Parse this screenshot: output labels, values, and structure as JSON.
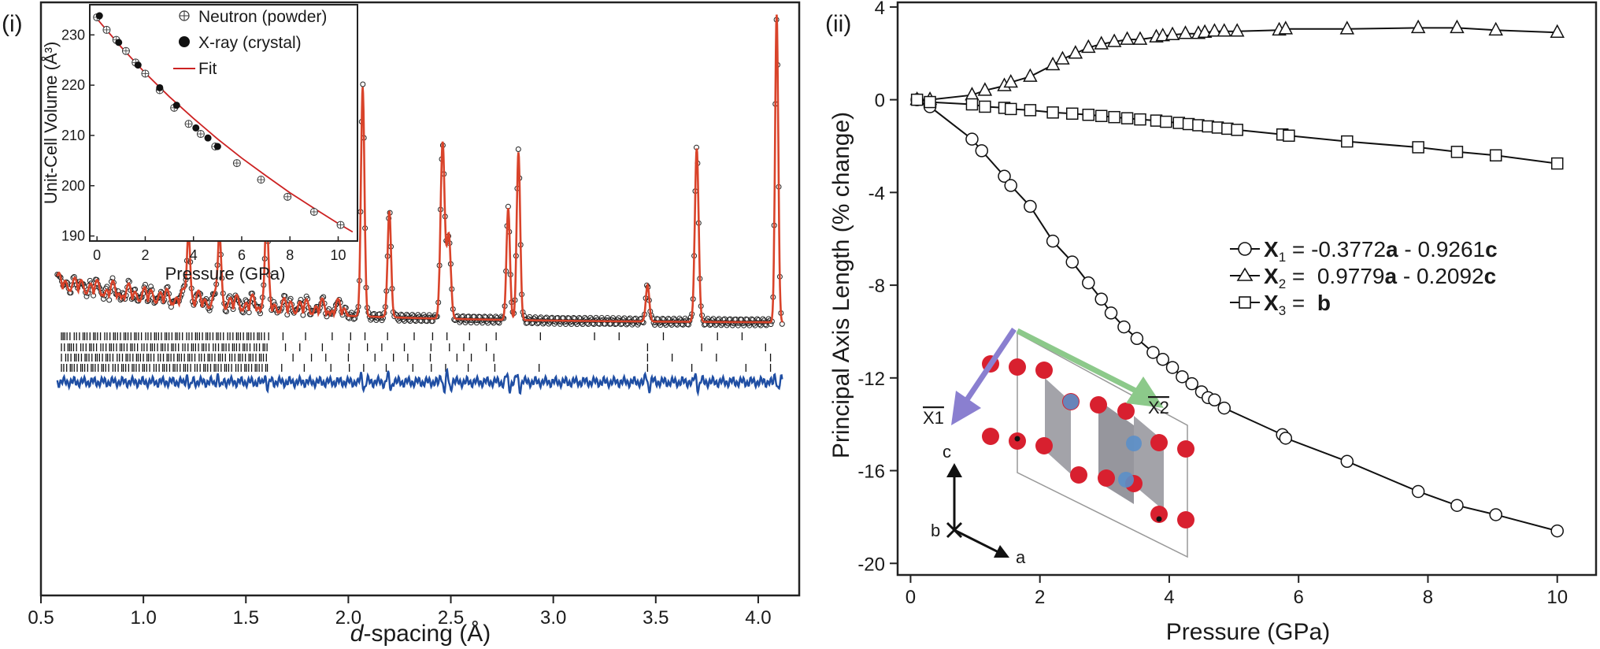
{
  "panel_i": {
    "panel_label": "(i)",
    "xlabel_italic": "d",
    "xlabel_rest": "-spacing (Å)",
    "x_ticks": [
      "0.5",
      "1.0",
      "1.5",
      "2.0",
      "2.5",
      "3.0",
      "3.5",
      "4.0"
    ],
    "inset": {
      "ylabel": "Unit-Cell Volume (Å³)",
      "xlabel": "Pressure (GPa)",
      "x_ticks": [
        "0",
        "2",
        "4",
        "6",
        "8",
        "10"
      ],
      "y_ticks": [
        "190",
        "200",
        "210",
        "220",
        "230"
      ],
      "legend": [
        "Neutron (powder)",
        "X-ray (crystal)",
        "Fit"
      ]
    }
  },
  "panel_ii": {
    "panel_label": "(ii)",
    "xlabel": "Pressure (GPa)",
    "ylabel": "Principal Axis Length (% change)",
    "x_ticks": [
      "0",
      "2",
      "4",
      "6",
      "8",
      "10"
    ],
    "y_ticks": [
      "4",
      "0",
      "-4",
      "-8",
      "-12",
      "-16",
      "-20"
    ],
    "legend": {
      "x1": {
        "sym": "X",
        "sub": "1",
        "eq": " = -0.3772",
        "v1": "a",
        "mid": " - 0.9261",
        "v2": "c"
      },
      "x2": {
        "sym": "X",
        "sub": "2",
        "eq": " =  0.9779",
        "v1": "a",
        "mid": " - 0.2092",
        "v2": "c"
      },
      "x3": {
        "sym": "X",
        "sub": "3",
        "eq": " =  ",
        "v1": "b"
      }
    },
    "structure_labels": {
      "x1": "X1",
      "x2": "X2",
      "c": "c",
      "b": "b",
      "a": "a"
    }
  },
  "colors": {
    "observed": "#222222",
    "fit": "#d9432a",
    "difference": "#1f4ea3",
    "inset_fit": "#cc2222",
    "arrow_x1": "#8a7fd0",
    "arrow_x2": "#8cc98a",
    "atom": "#d8202f",
    "atom_blue": "#5b8fc9",
    "poly": "#7c7c84"
  },
  "chart_data": [
    {
      "type": "line",
      "title": "",
      "xlabel": "d-spacing (Å)",
      "ylabel": "",
      "xlim": [
        0.5,
        4.2
      ],
      "peaks_d": [
        1.22,
        1.37,
        1.6,
        2.07,
        2.2,
        2.46,
        2.49,
        2.78,
        2.83,
        3.46,
        3.7,
        4.09
      ],
      "reflection_rows": 4,
      "series": [
        {
          "name": "",
          "style": "observed (open circles)"
        },
        {
          "name": "",
          "style": "calculated (red line)"
        },
        {
          "name": "",
          "style": "difference (blue line)"
        }
      ]
    },
    {
      "type": "scatter",
      "title": "",
      "xlabel": "Pressure (GPa)",
      "ylabel": "Unit-Cell Volume (Å³)",
      "xlim": [
        -0.3,
        10.8
      ],
      "ylim": [
        189,
        236
      ],
      "series": [
        {
          "name": "Neutron (powder)",
          "x": [
            0.0,
            0.4,
            0.8,
            1.2,
            1.6,
            2.0,
            2.6,
            3.2,
            3.8,
            4.3,
            4.9,
            5.8,
            6.8,
            7.9,
            9.0,
            10.1
          ],
          "y": [
            233.5,
            231.0,
            229.0,
            226.8,
            224.5,
            222.3,
            219.0,
            215.5,
            212.3,
            210.3,
            207.8,
            204.5,
            201.2,
            197.8,
            194.8,
            192.2
          ]
        },
        {
          "name": "X-ray (crystal)",
          "x": [
            0.1,
            0.9,
            1.7,
            2.6,
            3.3,
            4.1,
            4.6,
            5.0
          ],
          "y": [
            233.8,
            228.5,
            224.0,
            219.5,
            216.0,
            211.5,
            209.5,
            207.8
          ]
        },
        {
          "name": "Fit",
          "x": [
            0,
            1,
            2,
            3,
            4,
            5,
            6,
            7,
            8,
            9,
            10,
            10.6
          ],
          "y": [
            233.2,
            227.6,
            222.4,
            217.7,
            213.4,
            209.3,
            205.5,
            202.0,
            198.6,
            195.5,
            192.5,
            190.8
          ]
        }
      ]
    },
    {
      "type": "line",
      "title": "",
      "xlabel": "Pressure (GPa)",
      "ylabel": "Principal Axis Length (% change)",
      "xlim": [
        -0.2,
        10.6
      ],
      "ylim": [
        -20.5,
        4.2
      ],
      "series": [
        {
          "name": "X1",
          "marker": "circle",
          "x": [
            0.1,
            0.3,
            0.95,
            1.1,
            1.45,
            1.55,
            1.85,
            2.2,
            2.5,
            2.75,
            2.95,
            3.1,
            3.3,
            3.5,
            3.75,
            3.9,
            4.05,
            4.2,
            4.35,
            4.5,
            4.6,
            4.7,
            4.85,
            5.75,
            5.8,
            6.75,
            7.85,
            8.45,
            9.05,
            10.0
          ],
          "y": [
            0.0,
            -0.3,
            -1.7,
            -2.2,
            -3.3,
            -3.7,
            -4.6,
            -6.1,
            -7.0,
            -7.9,
            -8.6,
            -9.2,
            -9.8,
            -10.3,
            -10.9,
            -11.2,
            -11.55,
            -11.95,
            -12.25,
            -12.6,
            -12.85,
            -12.95,
            -13.3,
            -14.45,
            -14.6,
            -15.6,
            -16.9,
            -17.5,
            -17.9,
            -18.6
          ]
        },
        {
          "name": "X2",
          "marker": "triangle",
          "x": [
            0.1,
            0.3,
            0.95,
            1.15,
            1.45,
            1.55,
            1.85,
            2.2,
            2.35,
            2.55,
            2.75,
            2.95,
            3.15,
            3.35,
            3.55,
            3.8,
            3.9,
            4.05,
            4.25,
            4.45,
            4.55,
            4.7,
            4.85,
            5.05,
            5.7,
            5.8,
            6.75,
            7.85,
            8.45,
            9.05,
            10.0
          ],
          "y": [
            0.0,
            0.0,
            0.2,
            0.4,
            0.6,
            0.75,
            1.0,
            1.5,
            1.75,
            2.0,
            2.25,
            2.4,
            2.5,
            2.6,
            2.6,
            2.7,
            2.75,
            2.8,
            2.85,
            2.85,
            2.9,
            2.95,
            2.95,
            2.95,
            3.0,
            3.05,
            3.05,
            3.1,
            3.1,
            3.0,
            2.9
          ]
        },
        {
          "name": "X3",
          "marker": "square",
          "x": [
            0.1,
            0.3,
            0.95,
            1.15,
            1.45,
            1.55,
            1.85,
            2.2,
            2.5,
            2.75,
            2.95,
            3.15,
            3.35,
            3.55,
            3.8,
            3.95,
            4.15,
            4.3,
            4.45,
            4.6,
            4.75,
            4.9,
            5.05,
            5.75,
            5.85,
            6.75,
            7.85,
            8.45,
            9.05,
            10.0
          ],
          "y": [
            0.0,
            -0.1,
            -0.2,
            -0.3,
            -0.35,
            -0.4,
            -0.45,
            -0.55,
            -0.6,
            -0.65,
            -0.7,
            -0.75,
            -0.8,
            -0.85,
            -0.9,
            -0.95,
            -1.0,
            -1.05,
            -1.1,
            -1.15,
            -1.2,
            -1.25,
            -1.3,
            -1.5,
            -1.55,
            -1.8,
            -2.05,
            -2.25,
            -2.4,
            -2.75
          ]
        }
      ]
    }
  ]
}
